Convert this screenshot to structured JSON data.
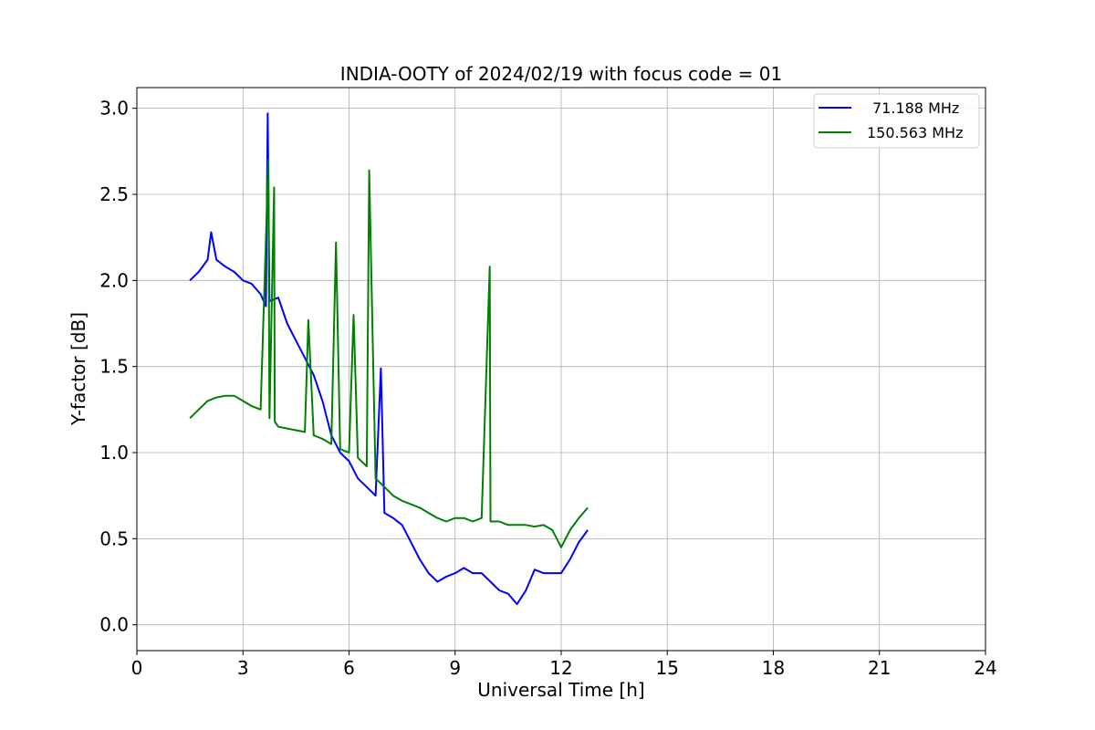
{
  "chart_data": {
    "type": "line",
    "title": "INDIA-OOTY of 2024/02/19 with focus code = 01",
    "xlabel": "Universal Time [h]",
    "ylabel": "Y-factor [dB]",
    "xlim": [
      0,
      24
    ],
    "ylim": [
      -0.15,
      3.12
    ],
    "xticks": [
      0,
      3,
      6,
      9,
      12,
      15,
      18,
      21,
      24
    ],
    "yticks": [
      0.0,
      0.5,
      1.0,
      1.5,
      2.0,
      2.5,
      3.0
    ],
    "xtick_labels": [
      "0",
      "3",
      "6",
      "9",
      "12",
      "15",
      "18",
      "21",
      "24"
    ],
    "ytick_labels": [
      "0.0",
      "0.5",
      "1.0",
      "1.5",
      "2.0",
      "2.5",
      "3.0"
    ],
    "grid": true,
    "legend_position": "top-right",
    "series": [
      {
        "name": "71.188 MHz",
        "color": "#0000ff",
        "x": [
          1.5,
          1.75,
          2.0,
          2.1,
          2.25,
          2.5,
          2.75,
          3.0,
          3.25,
          3.5,
          3.65,
          3.7,
          3.75,
          4.0,
          4.25,
          4.5,
          4.75,
          5.0,
          5.25,
          5.5,
          5.75,
          6.0,
          6.25,
          6.5,
          6.75,
          6.9,
          7.0,
          7.25,
          7.5,
          7.75,
          8.0,
          8.25,
          8.5,
          8.75,
          9.0,
          9.25,
          9.5,
          9.75,
          10.0,
          10.25,
          10.5,
          10.75,
          11.0,
          11.25,
          11.5,
          11.75,
          12.0,
          12.25,
          12.5,
          12.75
        ],
        "y": [
          2.0,
          2.05,
          2.12,
          2.28,
          2.12,
          2.08,
          2.05,
          2.0,
          1.98,
          1.92,
          1.85,
          2.97,
          1.88,
          1.9,
          1.75,
          1.65,
          1.55,
          1.45,
          1.3,
          1.1,
          1.0,
          0.95,
          0.85,
          0.8,
          0.75,
          1.49,
          0.65,
          0.62,
          0.58,
          0.48,
          0.38,
          0.3,
          0.25,
          0.28,
          0.3,
          0.33,
          0.3,
          0.3,
          0.25,
          0.2,
          0.18,
          0.12,
          0.2,
          0.32,
          0.3,
          0.3,
          0.3,
          0.38,
          0.48,
          0.55
        ]
      },
      {
        "name": "150.563 MHz",
        "color": "#008000",
        "x": [
          1.5,
          1.75,
          2.0,
          2.25,
          2.5,
          2.75,
          3.0,
          3.25,
          3.5,
          3.72,
          3.75,
          3.88,
          3.9,
          4.0,
          4.25,
          4.5,
          4.75,
          4.85,
          5.0,
          5.25,
          5.5,
          5.63,
          5.75,
          6.0,
          6.13,
          6.25,
          6.5,
          6.57,
          6.75,
          7.0,
          7.25,
          7.5,
          7.75,
          8.0,
          8.25,
          8.5,
          8.75,
          9.0,
          9.25,
          9.5,
          9.75,
          9.98,
          10.0,
          10.25,
          10.5,
          10.75,
          11.0,
          11.25,
          11.5,
          11.75,
          12.0,
          12.25,
          12.5,
          12.75
        ],
        "y": [
          1.2,
          1.25,
          1.3,
          1.32,
          1.33,
          1.33,
          1.3,
          1.27,
          1.25,
          2.7,
          1.2,
          2.54,
          1.18,
          1.15,
          1.14,
          1.13,
          1.12,
          1.77,
          1.1,
          1.08,
          1.05,
          2.22,
          1.02,
          1.0,
          1.8,
          0.97,
          0.92,
          2.64,
          0.85,
          0.8,
          0.75,
          0.72,
          0.7,
          0.68,
          0.65,
          0.62,
          0.6,
          0.62,
          0.62,
          0.6,
          0.62,
          2.08,
          0.6,
          0.6,
          0.58,
          0.58,
          0.58,
          0.57,
          0.58,
          0.55,
          0.45,
          0.55,
          0.62,
          0.68
        ]
      }
    ]
  }
}
